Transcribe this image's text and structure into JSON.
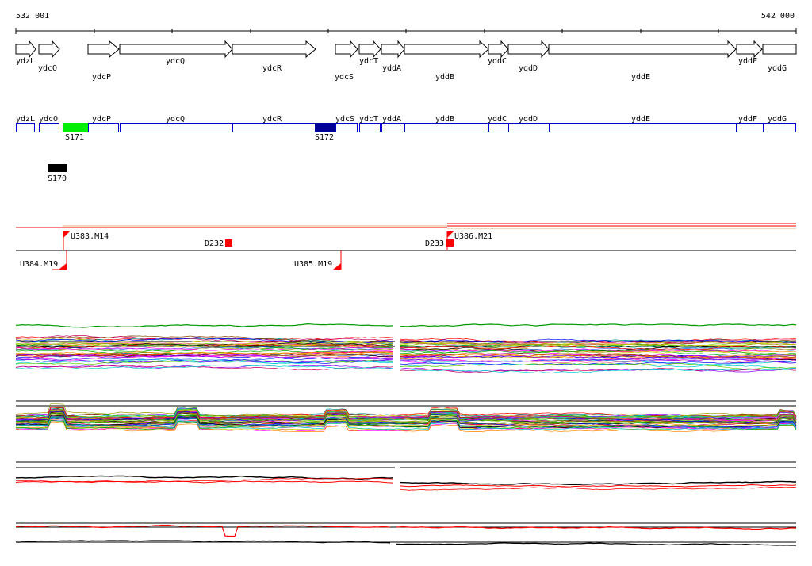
{
  "coordinates": {
    "start": "532 001",
    "end": "542 000"
  },
  "colors": {
    "gene_box": "#0000cc",
    "s171": "#00ee00",
    "s172": "#000099",
    "s170": "#000000",
    "feature": "#ff0000",
    "track_line": "#000000"
  },
  "genes": [
    {
      "name": "ydzL",
      "label_row": "top"
    },
    {
      "name": "ydcO",
      "label_row": "bottom"
    },
    {
      "name": "ydcP",
      "label_row": "bottom"
    },
    {
      "name": "ydcQ",
      "label_row": "top"
    },
    {
      "name": "ydcR",
      "label_row": "bottom"
    },
    {
      "name": "ydcS",
      "label_row": "bottom"
    },
    {
      "name": "ydcT",
      "label_row": "top"
    },
    {
      "name": "yddA",
      "label_row": "bottom"
    },
    {
      "name": "yddB",
      "label_row": "bottom"
    },
    {
      "name": "yddC",
      "label_row": "top"
    },
    {
      "name": "yddD",
      "label_row": "bottom"
    },
    {
      "name": "yddE",
      "label_row": "bottom"
    },
    {
      "name": "yddF",
      "label_row": "top"
    },
    {
      "name": "yddG",
      "label_row": "bottom"
    }
  ],
  "gene_box_labels": [
    "ydzL",
    "ydcO",
    "ydcP",
    "ydcQ",
    "ydcR",
    "ydcS",
    "ydcT",
    "yddA",
    "yddB",
    "yddC",
    "yddD",
    "yddE",
    "yddF",
    "yddG"
  ],
  "segments": [
    {
      "id": "S171",
      "color": "#00ee00"
    },
    {
      "id": "S172",
      "color": "#000099"
    },
    {
      "id": "S170",
      "color": "#000000"
    }
  ],
  "features": [
    {
      "id": "U383.M14",
      "type": "upshift"
    },
    {
      "id": "D232",
      "type": "downshift"
    },
    {
      "id": "D233",
      "type": "downshift"
    },
    {
      "id": "U386.M21",
      "type": "upshift"
    },
    {
      "id": "U384.M19",
      "type": "upshift"
    },
    {
      "id": "U385.M19",
      "type": "upshift"
    }
  ]
}
